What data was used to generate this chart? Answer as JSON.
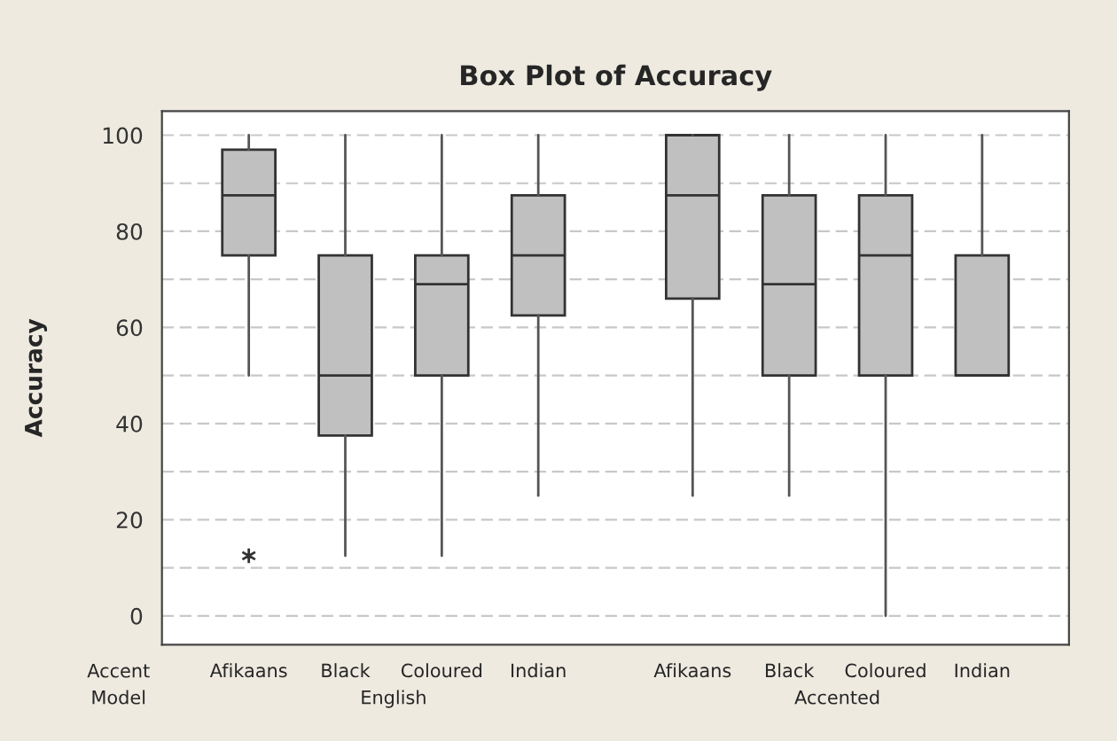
{
  "chart_data": {
    "type": "box",
    "title": "Box Plot of Accuracy",
    "ylabel": "Accuracy",
    "categories": [
      "Afikaans",
      "Black",
      "Coloured",
      "Indian",
      "Afikaans",
      "Black",
      "Coloured",
      "Indian"
    ],
    "boxes": [
      {
        "low": 50,
        "q1": 75,
        "median": 87.5,
        "q3": 97,
        "high": 100,
        "outliers": [
          12.5
        ]
      },
      {
        "low": 12.5,
        "q1": 37.5,
        "median": 50,
        "q3": 75,
        "high": 100
      },
      {
        "low": 12.5,
        "q1": 50,
        "median": 69,
        "q3": 75,
        "high": 100
      },
      {
        "low": 25,
        "q1": 62.5,
        "median": 75,
        "q3": 87.5,
        "high": 100
      },
      {
        "low": 25,
        "q1": 66,
        "median": 87.5,
        "q3": 100,
        "high": 100
      },
      {
        "low": 25,
        "q1": 50,
        "median": 69,
        "q3": 87.5,
        "high": 100
      },
      {
        "low": 0,
        "q1": 50,
        "median": 75,
        "q3": 87.5,
        "high": 100
      },
      {
        "low": 50,
        "q1": 50,
        "median": 50,
        "q3": 75,
        "high": 100
      }
    ],
    "color": "#c0c0c0",
    "ylim": [
      -6,
      105
    ],
    "yticks": [
      0,
      {
        "value": 10,
        "label": null
      },
      20,
      {
        "value": 30,
        "label": null
      },
      40,
      {
        "value": 50,
        "label": null
      },
      60,
      {
        "value": 70,
        "label": null
      },
      80,
      {
        "value": 90,
        "label": null
      },
      100
    ],
    "grid": "y",
    "annotations": [
      "Accent",
      "Model",
      "English",
      "Accented"
    ]
  }
}
